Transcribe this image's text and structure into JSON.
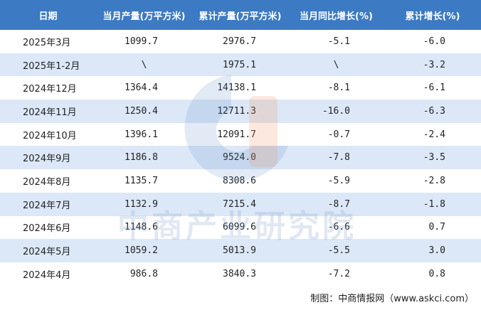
{
  "table": {
    "header": [
      "日期",
      "当月产量(万平方米)",
      "累计产量(万平方米)",
      "当月同比增长(%)",
      "累计增长(%)"
    ],
    "rows": [
      [
        "2025年3月",
        "1099.7",
        "2976.7",
        "-5.1",
        "-6.0"
      ],
      [
        "2025年1-2月",
        "\\",
        "1975.1",
        "\\",
        "-3.2"
      ],
      [
        "2024年12月",
        "1364.4",
        "14138.1",
        "-8.1",
        "-6.1"
      ],
      [
        "2024年11月",
        "1250.4",
        "12711.3",
        "-16.0",
        "-6.3"
      ],
      [
        "2024年10月",
        "1396.1",
        "12091.7",
        "-0.7",
        "-2.4"
      ],
      [
        "2024年9月",
        "1186.8",
        "9524.0",
        "-7.8",
        "-3.5"
      ],
      [
        "2024年8月",
        "1135.7",
        "8308.6",
        "-5.9",
        "-2.8"
      ],
      [
        "2024年7月",
        "1132.9",
        "7215.4",
        "-8.7",
        "-1.8"
      ],
      [
        "2024年6月",
        "1148.6",
        "6099.6",
        "-6.6",
        "0.7"
      ],
      [
        "2024年5月",
        "1059.2",
        "5013.9",
        "-5.5",
        "3.0"
      ],
      [
        "2024年4月",
        "986.8",
        "3840.3",
        "-7.2",
        "0.8"
      ]
    ]
  },
  "watermark": "中商产业研究院",
  "footer": "制图：中商情报网（www.askci.com）"
}
